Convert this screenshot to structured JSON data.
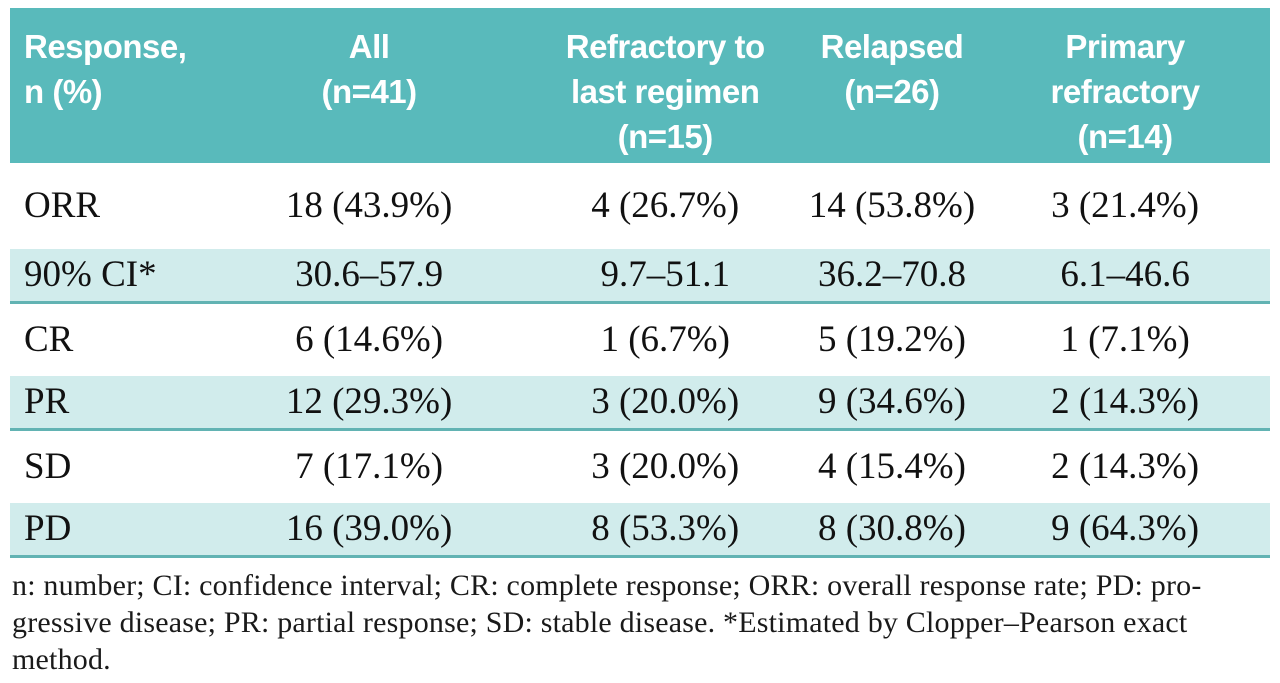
{
  "table": {
    "columns": [
      [
        "Response,",
        "n (%)"
      ],
      [
        "All",
        "(n=41)"
      ],
      [
        "Refractory to",
        "last regimen",
        "(n=15)"
      ],
      [
        "Relapsed",
        "(n=26)"
      ],
      [
        "Primary",
        "refractory",
        "(n=14)"
      ]
    ],
    "rows": [
      {
        "label": "ORR",
        "values": [
          "18 (43.9%)",
          "4 (26.7%)",
          "14 (53.8%)",
          "3 (21.4%)"
        ]
      },
      {
        "label": "90% CI*",
        "values": [
          "30.6–57.9",
          "9.7–51.1",
          "36.2–70.8",
          "6.1–46.6"
        ]
      },
      {
        "label": "CR",
        "values": [
          "6 (14.6%)",
          "1 (6.7%)",
          "5 (19.2%)",
          "1 (7.1%)"
        ]
      },
      {
        "label": "PR",
        "values": [
          "12 (29.3%)",
          "3 (20.0%)",
          "9 (34.6%)",
          "2 (14.3%)"
        ]
      },
      {
        "label": "SD",
        "values": [
          "7 (17.1%)",
          "3 (20.0%)",
          "4 (15.4%)",
          "2 (14.3%)"
        ]
      },
      {
        "label": "PD",
        "values": [
          "16 (39.0%)",
          "8 (53.3%)",
          "8 (30.8%)",
          "9 (64.3%)"
        ]
      }
    ]
  },
  "footnote": {
    "lines": [
      "n: number; CI: confidence interval; CR: complete response; ORR: overall response rate; PD: pro-",
      "gressive disease; PR: partial response; SD: stable disease. *Estimated by Clopper–Pearson exact",
      "method."
    ]
  },
  "colors": {
    "header_bg": "#59babb",
    "band_bg": "#d1ecec",
    "band_separator": "#62b3b3",
    "header_text": "#ffffff",
    "body_text": "#1a1a1a"
  }
}
